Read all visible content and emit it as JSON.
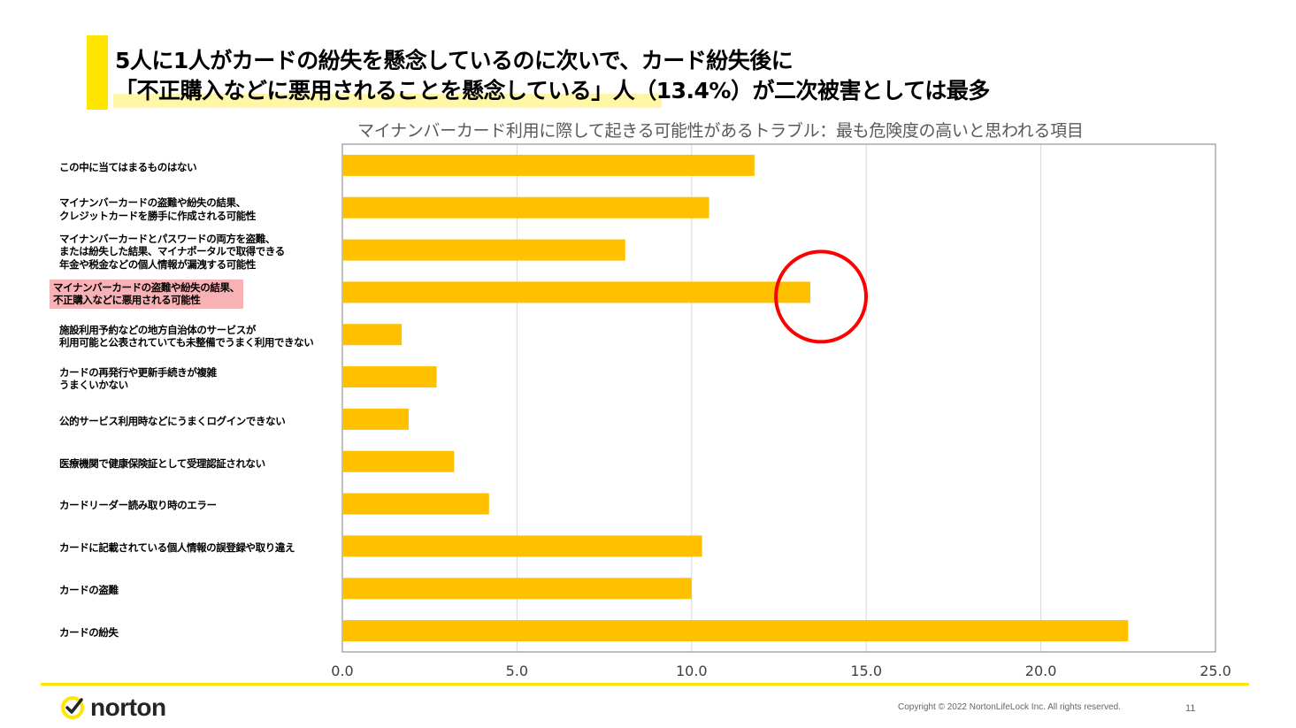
{
  "slide": {
    "headline_line1": "5人に1人がカードの紛失を懸念しているのに次いで、カード紛失後に",
    "headline_line2": "「不正購入などに悪用されることを懸念している」人（13.4%）が二次被害としては最多"
  },
  "chart_data": {
    "type": "bar",
    "orientation": "horizontal",
    "title": "マイナンバーカード利用に際して起きる可能性があるトラブル：最も危険度の高いと思われる項目",
    "categories": [
      [
        "この中に当てはまるものはない"
      ],
      [
        "マイナンバーカードの盗難や紛失の結果、",
        "クレジットカードを勝手に作成される可能性"
      ],
      [
        "マイナンバーカードとパスワードの両方を盗難、",
        "または紛失した結果、マイナポータルで取得できる",
        "年金や税金などの個人情報が漏洩する可能性"
      ],
      [
        "マイナンバーカードの盗難や紛失の結果、",
        "不正購入などに悪用される可能性"
      ],
      [
        "施設利用予約などの地方自治体のサービスが",
        "利用可能と公表されていても未整備でうまく利用できない"
      ],
      [
        "カードの再発行や更新手続きが複雑",
        "うまくいかない"
      ],
      [
        "公的サービス利用時などにうまくログインできない"
      ],
      [
        "医療機関で健康保険証として受理認証されない"
      ],
      [
        "カードリーダー読み取り時のエラー"
      ],
      [
        "カードに記載されている個人情報の誤登録や取り違え"
      ],
      [
        "カードの盗難"
      ],
      [
        "カードの紛失"
      ]
    ],
    "values": [
      11.8,
      10.5,
      8.1,
      13.4,
      1.7,
      2.7,
      1.9,
      3.2,
      4.2,
      10.3,
      10.0,
      22.5
    ],
    "highlighted_index": 3,
    "xlim": [
      0,
      25
    ],
    "xticks": [
      "0.0",
      "5.0",
      "10.0",
      "15.0",
      "20.0",
      "25.0"
    ],
    "grid": true,
    "colors": {
      "bar": "#FFC000",
      "highlight_label_bg": "#F8B1B5",
      "circle": "#FF0000",
      "grid": "#D9D9D9"
    }
  },
  "footer": {
    "logo_text": "norton",
    "copyright": "Copyright © 2022 NortonLifeLock Inc. All rights reserved.",
    "page_number": "11"
  },
  "colors": {
    "accent": "#FFE500",
    "highlight": "#FFF6A8"
  }
}
